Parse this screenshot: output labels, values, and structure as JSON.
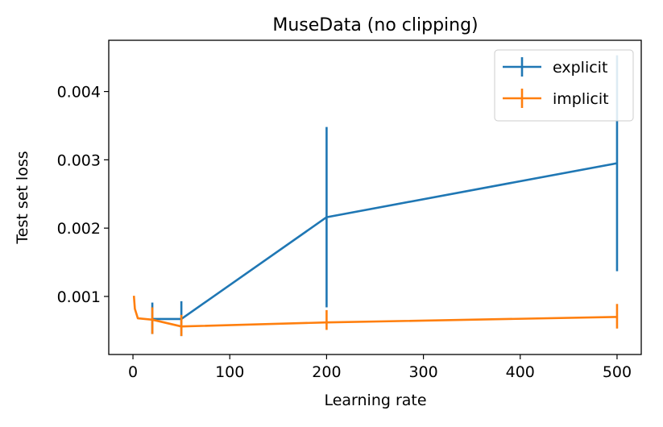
{
  "chart_data": {
    "type": "line",
    "title": "MuseData (no clipping)",
    "xlabel": "Learning rate",
    "ylabel": "Test set loss",
    "xlim": [
      -25,
      525
    ],
    "ylim": [
      0.00015,
      0.00475
    ],
    "xticks": [
      0,
      100,
      200,
      300,
      400,
      500
    ],
    "xtick_labels": [
      "0",
      "100",
      "200",
      "300",
      "400",
      "500"
    ],
    "yticks": [
      0.001,
      0.002,
      0.003,
      0.004
    ],
    "ytick_labels": [
      "0.001",
      "0.002",
      "0.003",
      "0.004"
    ],
    "grid": false,
    "legend_position": "upper right",
    "series": [
      {
        "name": "explicit",
        "color": "#1f77b4",
        "x": [
          20,
          50,
          200,
          500
        ],
        "y": [
          0.00067,
          0.00067,
          0.00216,
          0.00295
        ],
        "yerr_low": [
          0.00045,
          0.00042,
          0.00084,
          0.00137
        ],
        "yerr_high": [
          0.00091,
          0.00093,
          0.00348,
          0.00453
        ]
      },
      {
        "name": "implicit",
        "color": "#ff7f0e",
        "x": [
          1,
          2,
          5,
          20,
          50,
          200,
          500
        ],
        "y": [
          0.00101,
          0.00082,
          0.00068,
          0.00066,
          0.00056,
          0.00062,
          0.0007
        ],
        "yerr_low": [
          null,
          null,
          null,
          0.00045,
          0.00042,
          0.00051,
          0.00053
        ],
        "yerr_high": [
          null,
          null,
          null,
          0.00084,
          0.00073,
          0.0008,
          0.00089
        ]
      }
    ]
  }
}
